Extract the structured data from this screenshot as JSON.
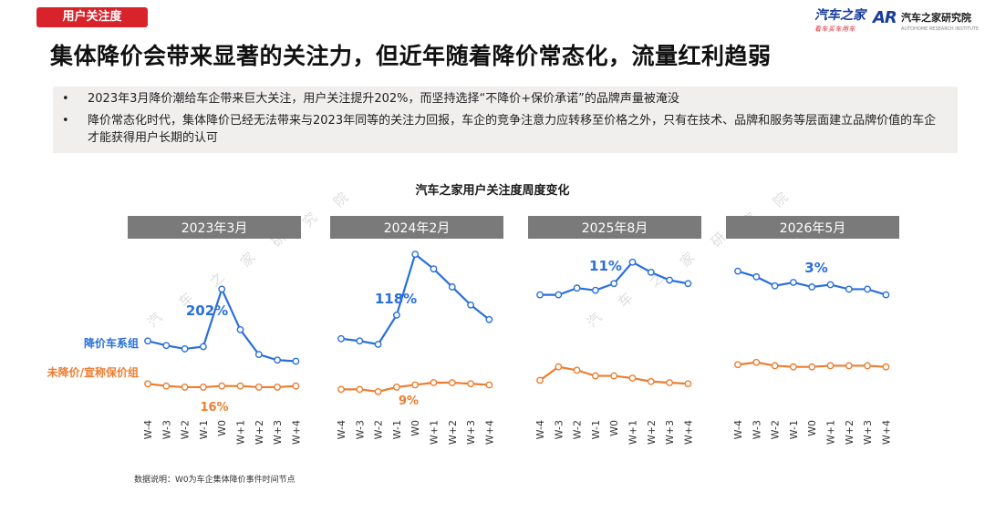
{
  "header": {
    "section_tag": "用户关注度",
    "logo_left": "汽车之家",
    "logo_left_sub": "看车买车用车",
    "logo_right_mark": "AR",
    "logo_right": "汽车之家研究院",
    "logo_right_sub": "AUTOHOME RESEARCH INSTITUTE",
    "headline": "集体降价会带来显著的关注力，但近年随着降价常态化，流量红利趋弱"
  },
  "bullets": [
    "2023年3月降价潮给车企带来巨大关注，用户关注提升202%，而坚持选择“不降价+保价承诺”的品牌声量被淹没",
    "降价常态化时代，集体降价已经无法带来与2023年同等的关注力回报，车企的竞争注意力应转移至价格之外，只有在技术、品牌和服务等层面建立品牌价值的车企才能获得用户长期的认可"
  ],
  "footnote": "数据说明：W0为车企集体降价事件时间节点",
  "watermark": "汽车之家研究院",
  "colors": {
    "accent_red": "#d8232a",
    "series_blue": "#2a6fdb",
    "series_orange": "#ed7d31",
    "panel_header": "#7a7a7a"
  },
  "chart_data": {
    "type": "line",
    "title": "汽车之家用户关注度周度变化",
    "categories": [
      "W-4",
      "W-3",
      "W-2",
      "W-1",
      "W0",
      "W+1",
      "W+2",
      "W+3",
      "W+4"
    ],
    "series_labels": [
      "降价车系组",
      "未降价/宣称保价组"
    ],
    "panels": [
      {
        "title": "2023年3月",
        "series": [
          {
            "name": "降价车系组",
            "values": [
              54,
              50,
              47,
              49,
              100,
              64,
              42,
              37,
              36
            ]
          },
          {
            "name": "未降价/宣称保价组",
            "values": [
              16,
              14,
              13,
              13,
              14,
              14,
              13,
              13,
              14
            ]
          }
        ],
        "annotations": [
          "202%",
          "16%"
        ]
      },
      {
        "title": "2024年2月",
        "series": [
          {
            "name": "降价车系组",
            "values": [
              56,
              54,
              51,
              77,
              131,
              118,
              102,
              86,
              73
            ]
          },
          {
            "name": "未降价/宣称保价组",
            "values": [
              11,
              11,
              9,
              13,
              15,
              17,
              17,
              16,
              15
            ]
          }
        ],
        "annotations": [
          "118%",
          "9%"
        ]
      },
      {
        "title": "2025年8月",
        "series": [
          {
            "name": "降价车系组",
            "values": [
              95,
              95,
              101,
              99,
              105,
              124,
              115,
              108,
              105
            ]
          },
          {
            "name": "未降价/宣称保价组",
            "values": [
              19,
              31,
              28,
              23,
              23,
              21,
              18,
              17,
              16
            ]
          }
        ],
        "annotations": [
          "11%",
          ""
        ]
      },
      {
        "title": "2026年5月",
        "series": [
          {
            "name": "降价车系组",
            "values": [
              116,
              111,
              103,
              106,
              102,
              104,
              100,
              100,
              95
            ]
          },
          {
            "name": "未降价/宣称保价组",
            "values": [
              33,
              35,
              32,
              31,
              31,
              32,
              32,
              32,
              31
            ]
          }
        ],
        "annotations": [
          "3%",
          ""
        ]
      }
    ]
  }
}
